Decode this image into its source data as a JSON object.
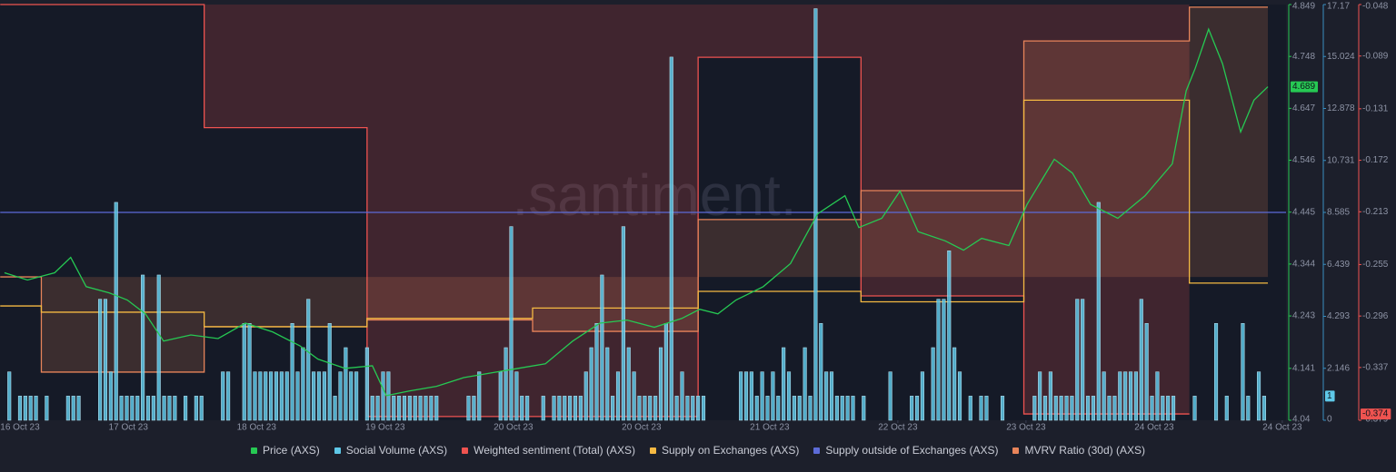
{
  "chart_data": {
    "type": "multi-series",
    "watermark": ".santiment.",
    "xlim": [
      -3.74,
      237.1
    ],
    "xticks": [
      {
        "value": 0,
        "label": "16 Oct 23"
      },
      {
        "value": 20.3,
        "label": "17 Oct 23"
      },
      {
        "value": 44.3,
        "label": "18 Oct 23"
      },
      {
        "value": 68.4,
        "label": "19 Oct 23"
      },
      {
        "value": 92.4,
        "label": "20 Oct 23"
      },
      {
        "value": 116.4,
        "label": "20 Oct 23"
      },
      {
        "value": 140.4,
        "label": "21 Oct 23"
      },
      {
        "value": 164.4,
        "label": "22 Oct 23"
      },
      {
        "value": 188.4,
        "label": "23 Oct 23"
      },
      {
        "value": 212.4,
        "label": "24 Oct 23"
      },
      {
        "value": 236.4,
        "label": "24 Oct 23"
      }
    ],
    "ylim": [
      4.04,
      4.849
    ],
    "yticks": [
      4.04,
      4.141,
      4.243,
      4.344,
      4.445,
      4.546,
      4.647,
      4.748,
      4.849
    ],
    "y2lim": [
      0,
      17.17
    ],
    "y2ticks": [
      0,
      2.146,
      4.293,
      6.439,
      8.585,
      10.731,
      12.878,
      15.024,
      17.17
    ],
    "y3lim": [
      -0.379,
      -0.048
    ],
    "y3ticks": [
      -0.379,
      -0.337,
      -0.296,
      -0.255,
      -0.213,
      -0.172,
      -0.131,
      -0.089,
      -0.048
    ],
    "series": [
      {
        "name": "Price (AXS)",
        "type": "line",
        "color": "#26c953",
        "axis": "y",
        "last_value_badge": true,
        "x": [
          -2.9,
          1.4,
          6.5,
          9.5,
          12.4,
          16.7,
          20.1,
          23.5,
          26.9,
          32,
          37.1,
          42.2,
          47.3,
          52.4,
          55.8,
          60.9,
          66,
          68.6,
          72.9,
          78,
          83.1,
          88.2,
          93.3,
          98.4,
          103.5,
          108.6,
          113.7,
          118.8,
          123.9,
          127.3,
          130.7,
          134.1,
          139.2,
          144.3,
          149.4,
          154.5,
          157.1,
          161.4,
          164.8,
          168.2,
          173.3,
          176.7,
          180.1,
          185.2,
          188.6,
          193.7,
          197.1,
          200.5,
          205.6,
          210.7,
          215.8,
          218.4,
          220.1,
          222.6,
          225.2,
          228.6,
          231.1,
          233.7
        ],
        "values": [
          4.327,
          4.313,
          4.327,
          4.357,
          4.3,
          4.288,
          4.274,
          4.247,
          4.194,
          4.206,
          4.199,
          4.229,
          4.212,
          4.185,
          4.159,
          4.141,
          4.146,
          4.088,
          4.097,
          4.106,
          4.123,
          4.132,
          4.141,
          4.15,
          4.194,
          4.229,
          4.235,
          4.221,
          4.238,
          4.256,
          4.247,
          4.274,
          4.3,
          4.345,
          4.442,
          4.477,
          4.415,
          4.433,
          4.486,
          4.407,
          4.389,
          4.371,
          4.394,
          4.38,
          4.46,
          4.548,
          4.521,
          4.46,
          4.433,
          4.477,
          4.539,
          4.681,
          4.725,
          4.801,
          4.734,
          4.601,
          4.663,
          4.689
        ]
      },
      {
        "name": "Social Volume (AXS)",
        "type": "bar",
        "color": "#5ec8e8",
        "axis": "y2",
        "last_value_badge": true,
        "x": [
          -2,
          0,
          1,
          2,
          3,
          5,
          9,
          10,
          11,
          15,
          16,
          17,
          18,
          19,
          20,
          21,
          22,
          23,
          24,
          25,
          26,
          27,
          28,
          29,
          31,
          33,
          34,
          38,
          39,
          42,
          43,
          44,
          45,
          46,
          47,
          48,
          49,
          50,
          51,
          52,
          53,
          54,
          55,
          56,
          57,
          58,
          59,
          60,
          61,
          62,
          63,
          65,
          66,
          67,
          68,
          69,
          70,
          71,
          72,
          73,
          74,
          75,
          76,
          77,
          78,
          84,
          85,
          86,
          90,
          91,
          92,
          93,
          94,
          95,
          98,
          100,
          101,
          102,
          103,
          104,
          105,
          106,
          107,
          108,
          109,
          110,
          111,
          112,
          113,
          114,
          115,
          116,
          117,
          118,
          119,
          120,
          121,
          122,
          123,
          124,
          125,
          126,
          127,
          128,
          135,
          136,
          137,
          138,
          139,
          140,
          141,
          142,
          143,
          144,
          145,
          146,
          147,
          148,
          149,
          150,
          151,
          152,
          153,
          154,
          155,
          156,
          158,
          163,
          167,
          168,
          169,
          171,
          172,
          173,
          174,
          175,
          176,
          178,
          180,
          181,
          184,
          190,
          191,
          192,
          193,
          194,
          195,
          196,
          197,
          198,
          199,
          200,
          201,
          202,
          203,
          204,
          205,
          206,
          207,
          208,
          209,
          210,
          211,
          212,
          213,
          214,
          215,
          216,
          220,
          224,
          226,
          229,
          230,
          232,
          233
        ],
        "values": [
          2,
          1,
          1,
          1,
          1,
          1,
          1,
          1,
          1,
          5,
          5,
          2,
          9,
          1,
          1,
          1,
          1,
          6,
          1,
          1,
          6,
          1,
          1,
          1,
          1,
          1,
          1,
          2,
          2,
          4,
          4,
          2,
          2,
          2,
          2,
          2,
          2,
          2,
          4,
          2,
          3,
          5,
          2,
          2,
          2,
          4,
          1,
          2,
          3,
          2,
          2,
          3,
          1,
          1,
          2,
          2,
          1,
          1,
          1,
          1,
          1,
          1,
          1,
          1,
          1,
          1,
          1,
          2,
          2,
          3,
          8,
          2,
          1,
          1,
          1,
          1,
          1,
          1,
          1,
          1,
          1,
          2,
          3,
          4,
          6,
          3,
          1,
          2,
          8,
          3,
          2,
          1,
          1,
          1,
          1,
          3,
          4,
          15,
          1,
          2,
          1,
          1,
          1,
          1,
          2,
          2,
          2,
          1,
          2,
          1,
          2,
          1,
          3,
          2,
          1,
          1,
          3,
          1,
          17,
          4,
          2,
          2,
          1,
          1,
          1,
          1,
          1,
          2,
          1,
          1,
          2,
          3,
          5,
          5,
          7,
          3,
          2,
          1,
          1,
          1,
          1,
          1,
          2,
          1,
          2,
          1,
          1,
          1,
          1,
          5,
          5,
          1,
          1,
          9,
          2,
          1,
          1,
          2,
          2,
          2,
          2,
          5,
          4,
          1,
          2,
          1,
          1,
          1,
          1,
          4,
          1,
          4,
          1,
          2,
          1
        ]
      },
      {
        "name": "Weighted sentiment (Total) (AXS)",
        "type": "step-area",
        "fill": "top",
        "color": "#ef5350",
        "axis": "y3",
        "last_value_badge": true,
        "x": [
          -3.7,
          34.5,
          65,
          127,
          157.5,
          188,
          219
        ],
        "values": [
          -0.048,
          -0.146,
          -0.376,
          -0.09,
          -0.28,
          -0.374,
          -0.374
        ]
      },
      {
        "name": "Supply on Exchanges (AXS)",
        "type": "step",
        "color": "#f5b942",
        "ylim": [
          15,
          17
        ],
        "x": [
          -3.7,
          4,
          34.5,
          65,
          96,
          127,
          157.5,
          188,
          219,
          233.7
        ],
        "values": [
          15.55,
          15.52,
          15.45,
          15.49,
          15.54,
          15.62,
          15.57,
          16.54,
          15.66,
          15.66
        ]
      },
      {
        "name": "Supply outside of Exchanges (AXS)",
        "type": "line",
        "color": "#5c6bd8",
        "ylim": [
          400,
          500
        ],
        "x": [
          -3.7,
          237.1
        ],
        "values": [
          450,
          450
        ]
      },
      {
        "name": "MVRV Ratio (30d) (AXS)",
        "type": "step-area",
        "fill": "zero",
        "color": "#e8845a",
        "ylim": [
          -5,
          9.5
        ],
        "x": [
          -3.7,
          4,
          34.5,
          65,
          96,
          127,
          157.5,
          188,
          219,
          233.7
        ],
        "values": [
          0,
          -3.32,
          -1.74,
          -1.5,
          -1.9,
          2,
          3.01,
          8.23,
          9.41,
          9.41
        ]
      }
    ]
  }
}
